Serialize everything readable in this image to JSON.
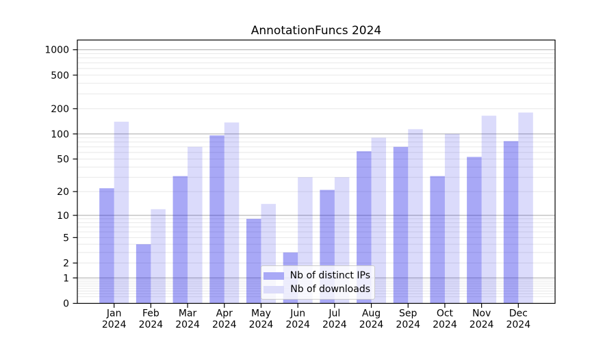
{
  "chart_data": {
    "type": "bar",
    "title": "AnnotationFuncs 2024",
    "categories": [
      "Jan",
      "Feb",
      "Mar",
      "Apr",
      "May",
      "Jun",
      "Jul",
      "Aug",
      "Sep",
      "Oct",
      "Nov",
      "Dec"
    ],
    "year_label": "2024",
    "series": [
      {
        "name": "Nb of distinct IPs",
        "color": "rgba(0,0,230,0.34)",
        "swatch_color": "#a9a9f6",
        "values": [
          22,
          4,
          31,
          96,
          9,
          3,
          21,
          62,
          70,
          31,
          53,
          82
        ]
      },
      {
        "name": "Nb of downloads",
        "color": "rgba(0,0,230,0.14)",
        "swatch_color": "#dcdcfa",
        "values": [
          140,
          12,
          70,
          137,
          14,
          30,
          30,
          90,
          114,
          100,
          165,
          180
        ]
      }
    ],
    "yscale": "log1p",
    "yticks": [
      0,
      1,
      2,
      5,
      10,
      20,
      50,
      100,
      200,
      500,
      1000
    ],
    "major_gridlines": [
      1,
      10,
      100,
      1000
    ],
    "ylim": [
      0,
      1310
    ],
    "grid": true,
    "legend_position": "lower center",
    "colors": {
      "axis": "#000000",
      "tick_label": "#000000",
      "major_grid": "#b2b2b2",
      "minor_grid": "#e8e8e8",
      "background": "#ffffff"
    }
  }
}
